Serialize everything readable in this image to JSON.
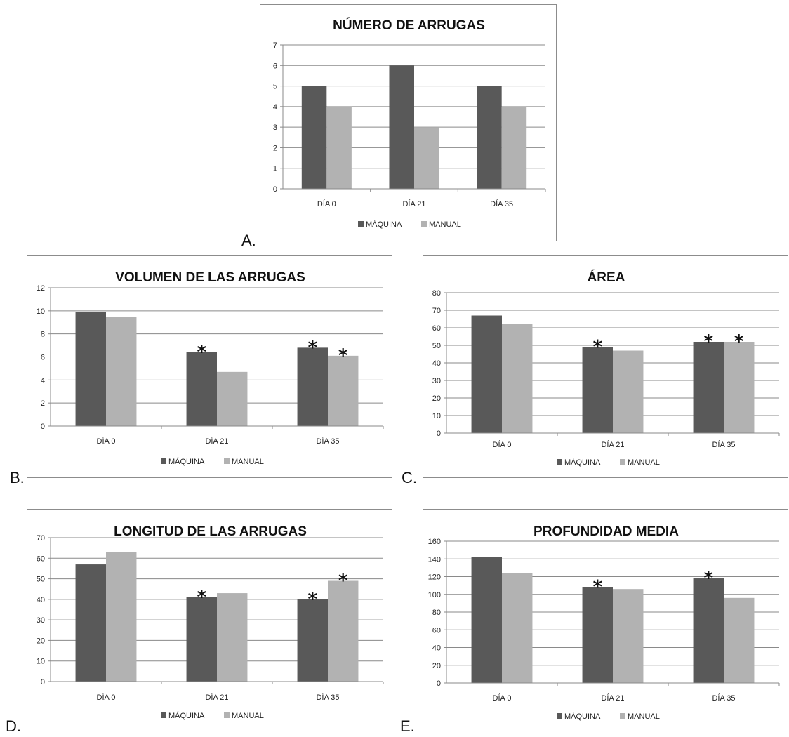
{
  "chart_data": [
    {
      "id": "A",
      "type": "bar",
      "title": "NÚMERO DE ARRUGAS",
      "categories": [
        "DÍA 0",
        "DÍA 21",
        "DÍA 35"
      ],
      "series": [
        {
          "name": "MÁQUINA",
          "values": [
            5,
            6,
            5
          ],
          "color": "#595959"
        },
        {
          "name": "MANUAL",
          "values": [
            4,
            3,
            4
          ],
          "color": "#b2b2b2"
        }
      ],
      "ylim": [
        0,
        7
      ],
      "yticks": [
        0,
        1,
        2,
        3,
        4,
        5,
        6,
        7
      ],
      "asterisks": [],
      "grid": true,
      "legend": "bottom"
    },
    {
      "id": "B",
      "type": "bar",
      "title": "VOLUMEN DE LAS ARRUGAS",
      "categories": [
        "DÍA 0",
        "DÍA 21",
        "DÍA 35"
      ],
      "series": [
        {
          "name": "MÁQUINA",
          "values": [
            9.9,
            6.4,
            6.8
          ],
          "color": "#595959"
        },
        {
          "name": "MANUAL",
          "values": [
            9.5,
            4.7,
            6.1
          ],
          "color": "#b2b2b2"
        }
      ],
      "ylim": [
        0,
        12
      ],
      "yticks": [
        0,
        2,
        4,
        6,
        8,
        10,
        12
      ],
      "asterisks": [
        [
          0,
          1
        ],
        [
          0,
          2
        ],
        [
          1,
          2
        ]
      ],
      "grid": true,
      "legend": "bottom"
    },
    {
      "id": "C",
      "type": "bar",
      "title": "ÁREA",
      "categories": [
        "DÍA 0",
        "DÍA 21",
        "DÍA 35"
      ],
      "series": [
        {
          "name": "MÁQUINA",
          "values": [
            67,
            49,
            52
          ],
          "color": "#595959"
        },
        {
          "name": "MANUAL",
          "values": [
            62,
            47,
            52
          ],
          "color": "#b2b2b2"
        }
      ],
      "ylim": [
        0,
        80
      ],
      "yticks": [
        0,
        10,
        20,
        30,
        40,
        50,
        60,
        70,
        80
      ],
      "asterisks": [
        [
          0,
          1
        ],
        [
          0,
          2
        ],
        [
          1,
          2
        ]
      ],
      "grid": true,
      "legend": "bottom"
    },
    {
      "id": "D",
      "type": "bar",
      "title": "LONGITUD DE LAS ARRUGAS",
      "categories": [
        "DÍA 0",
        "DÍA 21",
        "DÍA 35"
      ],
      "series": [
        {
          "name": "MÁQUINA",
          "values": [
            57,
            41,
            40
          ],
          "color": "#595959"
        },
        {
          "name": "MANUAL",
          "values": [
            63,
            43,
            49
          ],
          "color": "#b2b2b2"
        }
      ],
      "ylim": [
        0,
        70
      ],
      "yticks": [
        0,
        10,
        20,
        30,
        40,
        50,
        60,
        70
      ],
      "asterisks": [
        [
          0,
          1
        ],
        [
          0,
          2
        ],
        [
          1,
          2
        ]
      ],
      "grid": true,
      "legend": "bottom"
    },
    {
      "id": "E",
      "type": "bar",
      "title": "PROFUNDIDAD MEDIA",
      "categories": [
        "DÍA 0",
        "DÍA 21",
        "DÍA 35"
      ],
      "series": [
        {
          "name": "MÁQUINA",
          "values": [
            142,
            108,
            118
          ],
          "color": "#595959"
        },
        {
          "name": "MANUAL",
          "values": [
            124,
            106,
            96
          ],
          "color": "#b2b2b2"
        }
      ],
      "ylim": [
        0,
        160
      ],
      "yticks": [
        0,
        20,
        40,
        60,
        80,
        100,
        120,
        140,
        160
      ],
      "asterisks": [
        [
          0,
          1
        ],
        [
          0,
          2
        ]
      ],
      "grid": true,
      "legend": "bottom"
    }
  ],
  "panel_letters": {
    "a": "A.",
    "b": "B.",
    "c": "C.",
    "d": "D.",
    "e": "E."
  },
  "asterisk_symbol": "*"
}
